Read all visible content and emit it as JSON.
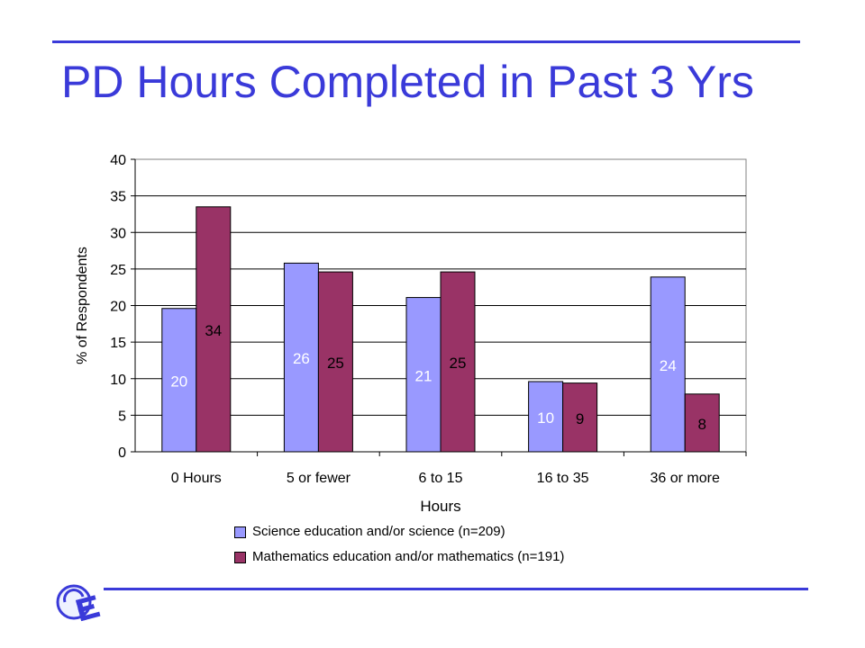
{
  "slide": {
    "title": "PD Hours Completed in Past 3 Yrs",
    "accent_color": "#3a3ad9",
    "logo_icon": "circle-e-logo"
  },
  "chart_data": {
    "type": "bar",
    "categories": [
      "0 Hours",
      "5 or fewer",
      "6 to 15",
      "16 to 35",
      "36 or more"
    ],
    "series": [
      {
        "name": "Science education and/or science (n=209)",
        "color": "#9999ff",
        "values": [
          19.6,
          25.8,
          21.1,
          9.6,
          23.9
        ],
        "labels": [
          "20",
          "26",
          "21",
          "10",
          "24"
        ]
      },
      {
        "name": "Mathematics education and/or mathematics (n=191)",
        "color": "#993366",
        "values": [
          33.5,
          24.6,
          24.6,
          9.4,
          7.9
        ],
        "labels": [
          "34",
          "25",
          "25",
          "9",
          "8"
        ]
      }
    ],
    "xlabel": "Hours",
    "ylabel": "% of Respondents",
    "ylim": [
      0,
      40
    ],
    "yticks": [
      0,
      5,
      10,
      15,
      20,
      25,
      30,
      35,
      40
    ],
    "grid": true,
    "legend_position": "bottom"
  }
}
